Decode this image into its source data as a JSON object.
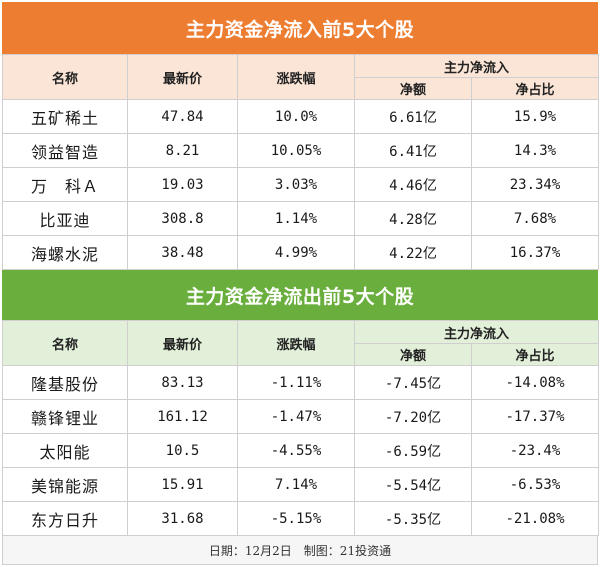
{
  "inflow": {
    "title": "主力资金净流入前5大个股",
    "headers": {
      "name": "名称",
      "price": "最新价",
      "change": "涨跌幅",
      "group": "主力净流入",
      "net": "净额",
      "ratio": "净占比"
    },
    "rows": [
      {
        "name": "五矿稀土",
        "price": "47.84",
        "change": "10.0%",
        "net": "6.61亿",
        "ratio": "15.9%"
      },
      {
        "name": "领益智造",
        "price": "8.21",
        "change": "10.05%",
        "net": "6.41亿",
        "ratio": "14.3%"
      },
      {
        "name": "万　科Ａ",
        "price": "19.03",
        "change": "3.03%",
        "net": "4.46亿",
        "ratio": "23.34%"
      },
      {
        "name": "比亚迪",
        "price": "308.8",
        "change": "1.14%",
        "net": "4.28亿",
        "ratio": "7.68%"
      },
      {
        "name": "海螺水泥",
        "price": "38.48",
        "change": "4.99%",
        "net": "4.22亿",
        "ratio": "16.37%"
      }
    ]
  },
  "outflow": {
    "title": "主力资金净流出前5大个股",
    "headers": {
      "name": "名称",
      "price": "最新价",
      "change": "涨跌幅",
      "group": "主力净流入",
      "net": "净额",
      "ratio": "净占比"
    },
    "rows": [
      {
        "name": "隆基股份",
        "price": "83.13",
        "change": "-1.11%",
        "net": "-7.45亿",
        "ratio": "-14.08%"
      },
      {
        "name": "赣锋锂业",
        "price": "161.12",
        "change": "-1.47%",
        "net": "-7.20亿",
        "ratio": "-17.37%"
      },
      {
        "name": "太阳能",
        "price": "10.5",
        "change": "-4.55%",
        "net": "-6.59亿",
        "ratio": "-23.4%"
      },
      {
        "name": "美锦能源",
        "price": "15.91",
        "change": "7.14%",
        "net": "-5.54亿",
        "ratio": "-6.53%"
      },
      {
        "name": "东方日升",
        "price": "31.68",
        "change": "-5.15%",
        "net": "-5.35亿",
        "ratio": "-21.08%"
      }
    ]
  },
  "footer": "日期：12月2日　制图：21投资通",
  "colors": {
    "inflow_banner": "#ed7d31",
    "inflow_header": "#fbe5d6",
    "outflow_banner": "#6aaf3d",
    "outflow_header": "#e2efd9"
  }
}
